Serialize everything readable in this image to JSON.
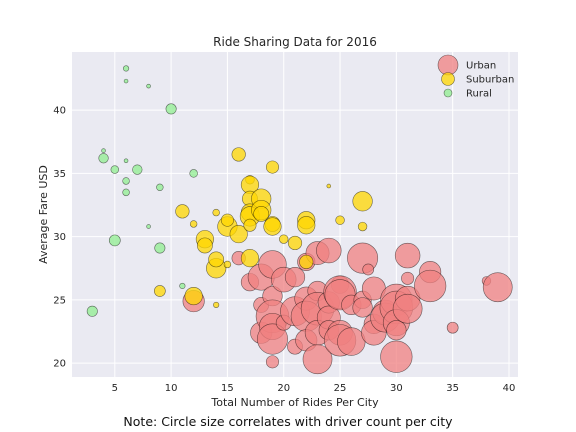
{
  "chart_data": {
    "type": "scatter",
    "title": "Ride Sharing Data for 2016",
    "xlabel": "Total Number of Rides Per City",
    "ylabel": "Average Fare USD",
    "xlim": [
      1.2,
      40.8
    ],
    "ylim": [
      18.9,
      44.6
    ],
    "xticks": [
      5,
      10,
      15,
      20,
      25,
      30,
      35,
      40
    ],
    "yticks": [
      20,
      25,
      30,
      35,
      40
    ],
    "grid": true,
    "legend_position": "top-right",
    "series": [
      {
        "name": "Urban",
        "color": "#F08080",
        "points": [
          {
            "x": 12,
            "y": 24.9,
            "d": 30
          },
          {
            "x": 16,
            "y": 28.3,
            "d": 12
          },
          {
            "x": 17,
            "y": 26.4,
            "d": 20
          },
          {
            "x": 18,
            "y": 26.8,
            "d": 45
          },
          {
            "x": 18,
            "y": 24.6,
            "d": 15
          },
          {
            "x": 18,
            "y": 22.4,
            "d": 30
          },
          {
            "x": 19,
            "y": 27.8,
            "d": 50
          },
          {
            "x": 19,
            "y": 25.3,
            "d": 25
          },
          {
            "x": 19,
            "y": 23.7,
            "d": 70
          },
          {
            "x": 19,
            "y": 22.9,
            "d": 45
          },
          {
            "x": 19,
            "y": 21.9,
            "d": 60
          },
          {
            "x": 19,
            "y": 20.1,
            "d": 10
          },
          {
            "x": 20,
            "y": 26.6,
            "d": 40
          },
          {
            "x": 20,
            "y": 23.2,
            "d": 15
          },
          {
            "x": 21,
            "y": 26.8,
            "d": 25
          },
          {
            "x": 21,
            "y": 24.1,
            "d": 55
          },
          {
            "x": 21,
            "y": 21.3,
            "d": 15
          },
          {
            "x": 22,
            "y": 28.0,
            "d": 20
          },
          {
            "x": 22,
            "y": 25.1,
            "d": 35
          },
          {
            "x": 22,
            "y": 23.7,
            "d": 60
          },
          {
            "x": 22,
            "y": 21.8,
            "d": 30
          },
          {
            "x": 23,
            "y": 28.7,
            "d": 35
          },
          {
            "x": 23,
            "y": 25.7,
            "d": 25
          },
          {
            "x": 23,
            "y": 24.3,
            "d": 70
          },
          {
            "x": 23,
            "y": 22.4,
            "d": 40
          },
          {
            "x": 23,
            "y": 20.3,
            "d": 55
          },
          {
            "x": 24,
            "y": 28.9,
            "d": 40
          },
          {
            "x": 24,
            "y": 24.8,
            "d": 30
          },
          {
            "x": 24,
            "y": 23.6,
            "d": 35
          },
          {
            "x": 24,
            "y": 22.6,
            "d": 25
          },
          {
            "x": 25,
            "y": 26.2,
            "d": 20
          },
          {
            "x": 25,
            "y": 25.6,
            "d": 70
          },
          {
            "x": 25,
            "y": 25.4,
            "d": 60
          },
          {
            "x": 25,
            "y": 22.4,
            "d": 40
          },
          {
            "x": 25,
            "y": 21.8,
            "d": 65
          },
          {
            "x": 26,
            "y": 24.6,
            "d": 25
          },
          {
            "x": 26,
            "y": 21.7,
            "d": 50
          },
          {
            "x": 27,
            "y": 28.3,
            "d": 60
          },
          {
            "x": 27,
            "y": 25.0,
            "d": 20
          },
          {
            "x": 27,
            "y": 24.4,
            "d": 25
          },
          {
            "x": 27.5,
            "y": 27.4,
            "d": 8
          },
          {
            "x": 28,
            "y": 25.9,
            "d": 35
          },
          {
            "x": 28,
            "y": 23.1,
            "d": 25
          },
          {
            "x": 28,
            "y": 22.4,
            "d": 40
          },
          {
            "x": 29,
            "y": 24.0,
            "d": 40
          },
          {
            "x": 29,
            "y": 23.6,
            "d": 55
          },
          {
            "x": 30,
            "y": 25.0,
            "d": 65
          },
          {
            "x": 30,
            "y": 24.4,
            "d": 70
          },
          {
            "x": 30,
            "y": 23.2,
            "d": 45
          },
          {
            "x": 30,
            "y": 22.6,
            "d": 25
          },
          {
            "x": 30,
            "y": 20.5,
            "d": 65
          },
          {
            "x": 31,
            "y": 28.5,
            "d": 40
          },
          {
            "x": 31,
            "y": 26.7,
            "d": 10
          },
          {
            "x": 31,
            "y": 25.1,
            "d": 40
          },
          {
            "x": 31,
            "y": 24.3,
            "d": 55
          },
          {
            "x": 33,
            "y": 27.2,
            "d": 30
          },
          {
            "x": 33,
            "y": 26.1,
            "d": 65
          },
          {
            "x": 35,
            "y": 22.8,
            "d": 8
          },
          {
            "x": 38,
            "y": 26.5,
            "d": 5
          },
          {
            "x": 39,
            "y": 26.0,
            "d": 55
          }
        ]
      },
      {
        "name": "Suburban",
        "color": "#FFD700",
        "points": [
          {
            "x": 9,
            "y": 25.7,
            "d": 8
          },
          {
            "x": 11,
            "y": 32.0,
            "d": 12
          },
          {
            "x": 12,
            "y": 25.3,
            "d": 20
          },
          {
            "x": 12,
            "y": 31.0,
            "d": 3
          },
          {
            "x": 13,
            "y": 29.8,
            "d": 20
          },
          {
            "x": 13,
            "y": 29.3,
            "d": 15
          },
          {
            "x": 14,
            "y": 24.6,
            "d": 2
          },
          {
            "x": 14,
            "y": 27.5,
            "d": 25
          },
          {
            "x": 14,
            "y": 28.2,
            "d": 15
          },
          {
            "x": 14,
            "y": 31.9,
            "d": 3
          },
          {
            "x": 15,
            "y": 30.8,
            "d": 25
          },
          {
            "x": 15,
            "y": 31.3,
            "d": 10
          },
          {
            "x": 15,
            "y": 27.8,
            "d": 3
          },
          {
            "x": 16,
            "y": 36.5,
            "d": 12
          },
          {
            "x": 16,
            "y": 30.2,
            "d": 20
          },
          {
            "x": 17,
            "y": 34.5,
            "d": 5
          },
          {
            "x": 17,
            "y": 34.1,
            "d": 20
          },
          {
            "x": 17,
            "y": 33.0,
            "d": 15
          },
          {
            "x": 17,
            "y": 31.9,
            "d": 20
          },
          {
            "x": 17,
            "y": 31.6,
            "d": 25
          },
          {
            "x": 17,
            "y": 30.9,
            "d": 10
          },
          {
            "x": 17,
            "y": 28.3,
            "d": 20
          },
          {
            "x": 18,
            "y": 33.0,
            "d": 25
          },
          {
            "x": 18,
            "y": 32.1,
            "d": 25
          },
          {
            "x": 18,
            "y": 31.8,
            "d": 15
          },
          {
            "x": 19,
            "y": 35.5,
            "d": 10
          },
          {
            "x": 19,
            "y": 31.0,
            "d": 15
          },
          {
            "x": 19,
            "y": 30.8,
            "d": 20
          },
          {
            "x": 20,
            "y": 29.8,
            "d": 5
          },
          {
            "x": 21,
            "y": 29.5,
            "d": 12
          },
          {
            "x": 22,
            "y": 31.3,
            "d": 20
          },
          {
            "x": 22,
            "y": 30.9,
            "d": 20
          },
          {
            "x": 22,
            "y": 28.0,
            "d": 12
          },
          {
            "x": 24,
            "y": 34.0,
            "d": 1
          },
          {
            "x": 25,
            "y": 31.3,
            "d": 5
          },
          {
            "x": 27,
            "y": 32.8,
            "d": 25
          },
          {
            "x": 27,
            "y": 30.8,
            "d": 5
          }
        ]
      },
      {
        "name": "Rural",
        "color": "#90EE90",
        "points": [
          {
            "x": 3,
            "y": 24.1,
            "d": 7
          },
          {
            "x": 4,
            "y": 36.8,
            "d": 1
          },
          {
            "x": 4,
            "y": 36.2,
            "d": 6
          },
          {
            "x": 5,
            "y": 35.3,
            "d": 4
          },
          {
            "x": 5,
            "y": 29.7,
            "d": 8
          },
          {
            "x": 6,
            "y": 43.3,
            "d": 2
          },
          {
            "x": 6,
            "y": 42.3,
            "d": 1
          },
          {
            "x": 6,
            "y": 36.0,
            "d": 1
          },
          {
            "x": 6,
            "y": 34.4,
            "d": 3
          },
          {
            "x": 6,
            "y": 33.5,
            "d": 3
          },
          {
            "x": 7,
            "y": 35.3,
            "d": 6
          },
          {
            "x": 8,
            "y": 41.9,
            "d": 1
          },
          {
            "x": 8,
            "y": 30.8,
            "d": 1
          },
          {
            "x": 9,
            "y": 33.9,
            "d": 3
          },
          {
            "x": 9,
            "y": 29.1,
            "d": 7
          },
          {
            "x": 10,
            "y": 40.1,
            "d": 7
          },
          {
            "x": 11,
            "y": 26.1,
            "d": 2
          },
          {
            "x": 12,
            "y": 35.0,
            "d": 4
          }
        ]
      }
    ]
  },
  "note": "Note: Circle size correlates with driver count per city"
}
